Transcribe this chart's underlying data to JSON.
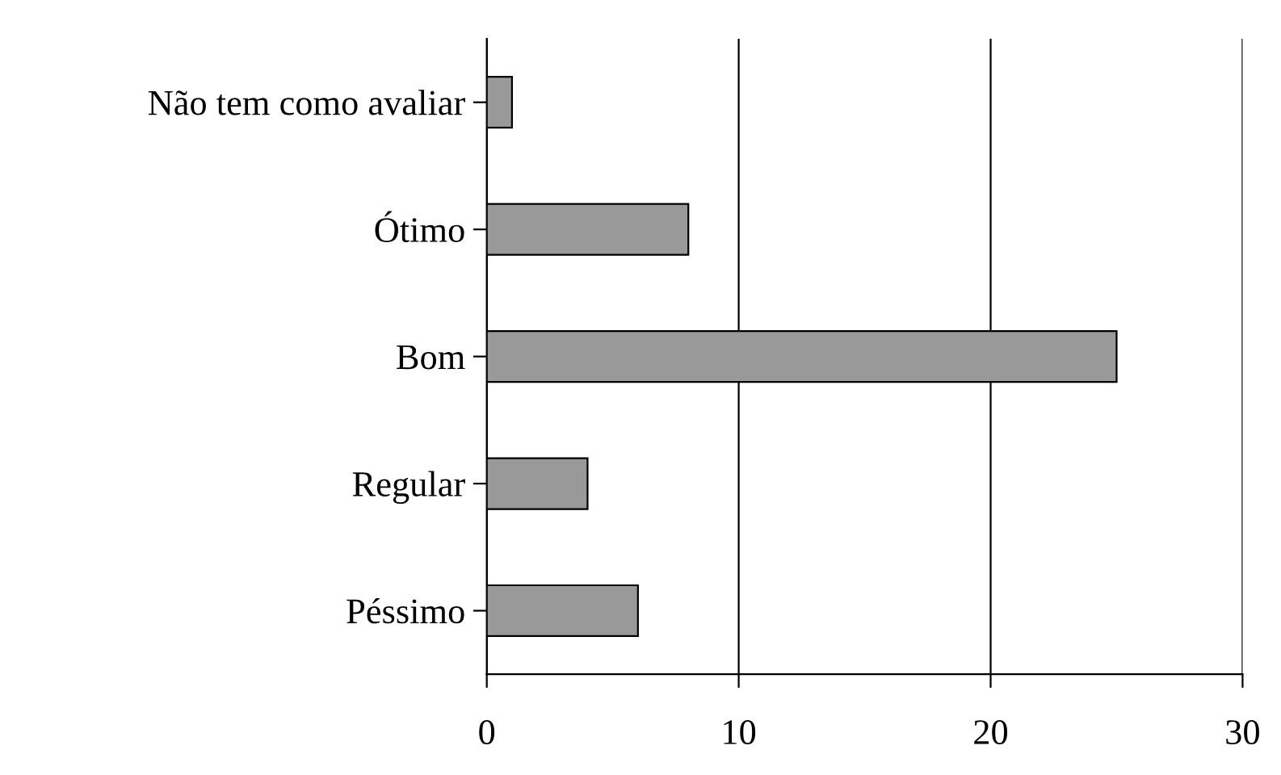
{
  "chart_data": {
    "type": "bar",
    "orientation": "horizontal",
    "categories": [
      "Não tem como avaliar",
      "Ótimo",
      "Bom",
      "Regular",
      "Péssimo"
    ],
    "values": [
      1,
      8,
      25,
      4,
      6
    ],
    "color": "#999999",
    "xlim": [
      0,
      30
    ],
    "xticks": [
      0,
      10,
      20,
      30
    ],
    "grid": "x"
  }
}
